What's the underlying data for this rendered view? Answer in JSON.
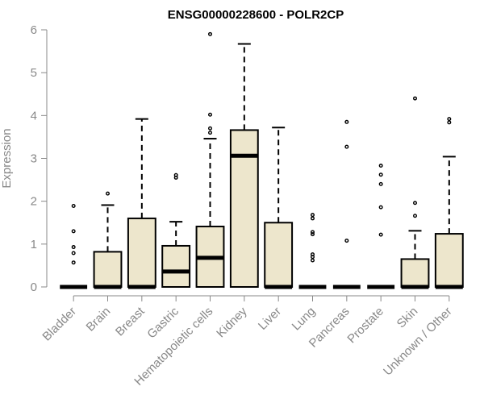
{
  "chart_data": {
    "type": "boxplot",
    "title": "ENSG00000228600 - POLR2CP",
    "xlabel": "",
    "ylabel": "Expression",
    "ylim": [
      0,
      6
    ],
    "yticks": [
      0,
      1,
      2,
      3,
      4,
      5,
      6
    ],
    "grid": false,
    "box_color": "#ede6cc",
    "categories": [
      "Bladder",
      "Brain",
      "Breast",
      "Gastric",
      "Hematopoietic cells",
      "Kidney",
      "Liver",
      "Lung",
      "Pancreas",
      "Prostate",
      "Skin",
      "Unknown / Other"
    ],
    "boxes": [
      {
        "q1": 0,
        "median": 0,
        "q3": 0,
        "whisker_low": 0,
        "whisker_high": 0,
        "outliers": [
          0.57,
          0.79,
          0.93,
          1.3,
          1.89
        ]
      },
      {
        "q1": 0,
        "median": 0,
        "q3": 0.82,
        "whisker_low": 0,
        "whisker_high": 1.91,
        "outliers": [
          2.18
        ]
      },
      {
        "q1": 0,
        "median": 0,
        "q3": 1.6,
        "whisker_low": 0,
        "whisker_high": 3.92,
        "outliers": []
      },
      {
        "q1": 0,
        "median": 0.36,
        "q3": 0.96,
        "whisker_low": 0,
        "whisker_high": 1.52,
        "outliers": [
          2.55,
          2.61
        ]
      },
      {
        "q1": 0,
        "median": 0.68,
        "q3": 1.41,
        "whisker_low": 0,
        "whisker_high": 3.46,
        "outliers": [
          3.6,
          3.7,
          4.02,
          5.9
        ]
      },
      {
        "q1": 0,
        "median": 3.06,
        "q3": 3.66,
        "whisker_low": 0,
        "whisker_high": 5.67,
        "outliers": []
      },
      {
        "q1": 0,
        "median": 0,
        "q3": 1.5,
        "whisker_low": 0,
        "whisker_high": 3.72,
        "outliers": []
      },
      {
        "q1": 0,
        "median": 0,
        "q3": 0,
        "whisker_low": 0,
        "whisker_high": 0,
        "outliers": [
          0.62,
          0.7,
          0.76,
          1.23,
          1.28,
          1.6,
          1.68
        ]
      },
      {
        "q1": 0,
        "median": 0,
        "q3": 0,
        "whisker_low": 0,
        "whisker_high": 0,
        "outliers": [
          1.08,
          3.27,
          3.85
        ]
      },
      {
        "q1": 0,
        "median": 0,
        "q3": 0,
        "whisker_low": 0,
        "whisker_high": 0,
        "outliers": [
          1.22,
          1.86,
          2.4,
          2.62,
          2.83
        ]
      },
      {
        "q1": 0,
        "median": 0,
        "q3": 0.65,
        "whisker_low": 0,
        "whisker_high": 1.31,
        "outliers": [
          1.66,
          1.96,
          4.4
        ]
      },
      {
        "q1": 0,
        "median": 0,
        "q3": 1.24,
        "whisker_low": 0,
        "whisker_high": 3.04,
        "outliers": [
          3.84,
          3.92
        ]
      }
    ]
  }
}
